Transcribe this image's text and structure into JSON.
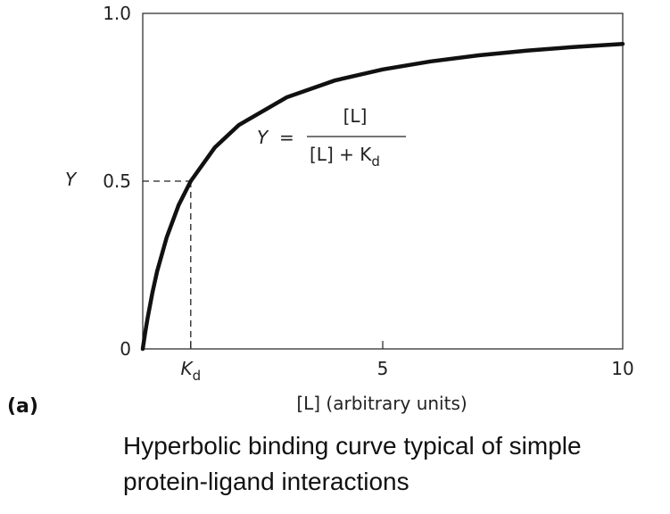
{
  "chart_data": {
    "type": "line",
    "panel_label": "(a)",
    "xlabel": "[L] (arbitrary units)",
    "ylabel": "Y",
    "xlim": [
      0,
      10
    ],
    "ylim": [
      0,
      1
    ],
    "x_ticks": [
      {
        "value": 1,
        "label": "K",
        "sub": "d"
      },
      {
        "value": 5,
        "label": "5"
      },
      {
        "value": 10,
        "label": "10"
      }
    ],
    "y_ticks": [
      {
        "value": 0,
        "label": "0"
      },
      {
        "value": 0.5,
        "label": "0.5"
      },
      {
        "value": 1,
        "label": "1.0"
      }
    ],
    "kd": 1,
    "series": [
      {
        "x": [
          0,
          0.05,
          0.1,
          0.2,
          0.3,
          0.5,
          0.75,
          1,
          1.5,
          2,
          3,
          4,
          5,
          6,
          7,
          8,
          9,
          10
        ],
        "y": [
          0,
          0.048,
          0.091,
          0.167,
          0.231,
          0.333,
          0.429,
          0.5,
          0.6,
          0.667,
          0.75,
          0.8,
          0.833,
          0.857,
          0.875,
          0.889,
          0.9,
          0.909
        ]
      }
    ],
    "annotation": {
      "lhs": "Y",
      "numerator": "[L]",
      "denominator": "[L] + K",
      "denominator_sub": "d"
    },
    "grid": false
  },
  "caption": "Hyperbolic binding curve typical of simple protein-ligand interactions"
}
